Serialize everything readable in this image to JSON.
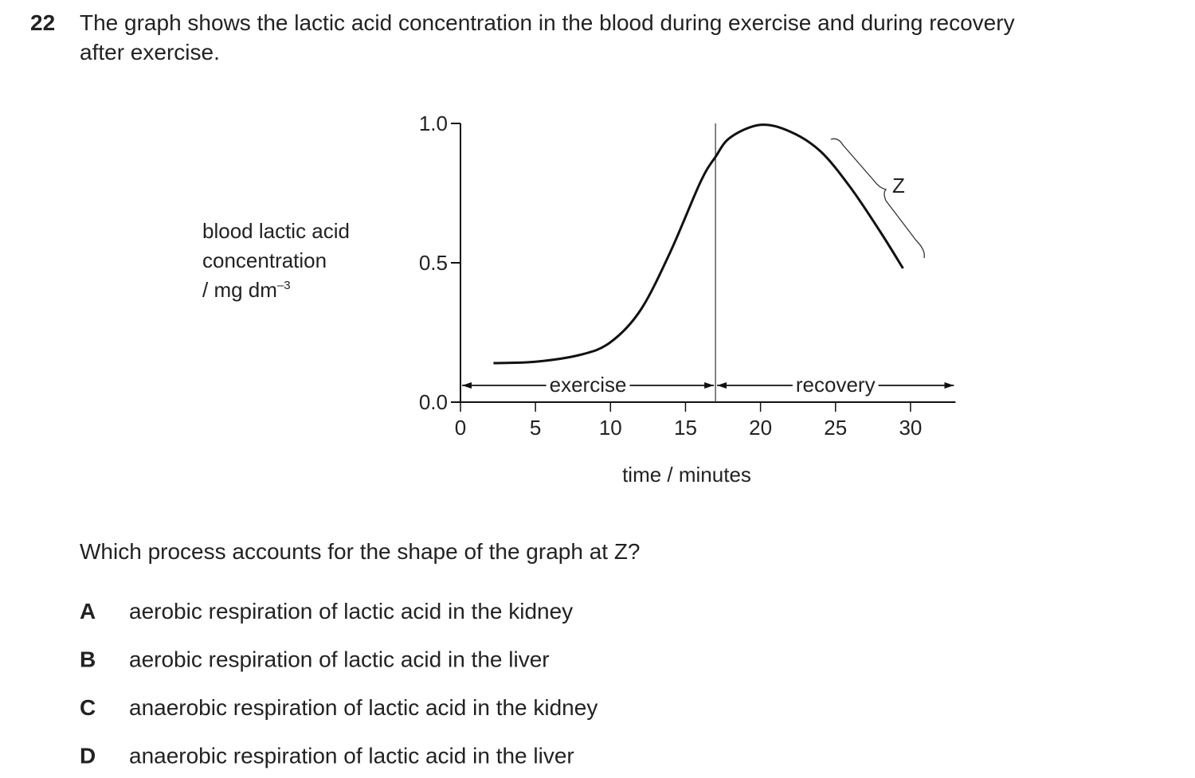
{
  "question": {
    "number": "22",
    "text_lines": [
      "The graph shows the lactic acid concentration in the blood during exercise and during recovery",
      "after exercise."
    ]
  },
  "chart_data": {
    "type": "line",
    "x_label": "time / minutes",
    "y_label_lines": [
      "blood lactic acid",
      "concentration"
    ],
    "y_unit": "/ mg dm",
    "y_unit_exp": "–3",
    "x": [
      2.2,
      5,
      8,
      10,
      12,
      14,
      16,
      17,
      18,
      20,
      22,
      24,
      26,
      28,
      29.5
    ],
    "values": [
      0.14,
      0.145,
      0.17,
      0.215,
      0.33,
      0.54,
      0.79,
      0.88,
      0.95,
      0.995,
      0.97,
      0.9,
      0.77,
      0.61,
      0.48
    ],
    "color": "#111111",
    "xlim": [
      0,
      33
    ],
    "ylim": [
      0,
      1
    ],
    "xticks": [
      0,
      5,
      10,
      15,
      20,
      25,
      30
    ],
    "yticks": [
      {
        "value": 0,
        "label": "0.0"
      },
      {
        "value": 0.5,
        "label": "0.5"
      },
      {
        "value": 1,
        "label": "1.0"
      }
    ],
    "phases": [
      {
        "label": "exercise",
        "start": 0,
        "end": 17
      },
      {
        "label": "recovery",
        "start": 17,
        "end": 33
      }
    ],
    "annotation": "Z"
  },
  "prompt": "Which process accounts for the shape of the graph at Z?",
  "options": [
    {
      "letter": "A",
      "text": "aerobic respiration of lactic acid in the kidney"
    },
    {
      "letter": "B",
      "text": "aerobic respiration of lactic acid in the liver"
    },
    {
      "letter": "C",
      "text": "anaerobic respiration of lactic acid in the kidney"
    },
    {
      "letter": "D",
      "text": "anaerobic respiration of lactic acid in the liver"
    }
  ]
}
